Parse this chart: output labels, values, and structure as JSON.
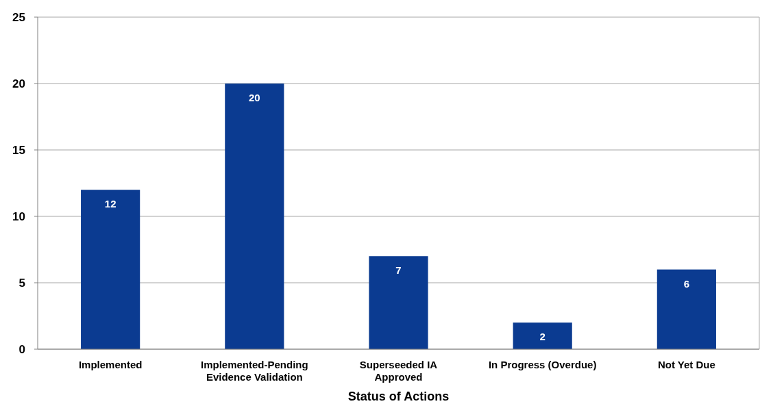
{
  "chart_data": {
    "type": "bar",
    "xlabel": "Status of Actions",
    "categories": [
      "Implemented",
      "Implemented-Pending Evidence Validation",
      "Superseeded IA Approved",
      "In Progress (Overdue)",
      "Not Yet Due"
    ],
    "values": [
      12,
      20,
      7,
      2,
      6
    ],
    "color": "#0b3b91",
    "ylim": [
      0,
      25
    ],
    "yticks": [
      0,
      5,
      10,
      15,
      20,
      25
    ],
    "grid": "y",
    "data_labels": true
  }
}
